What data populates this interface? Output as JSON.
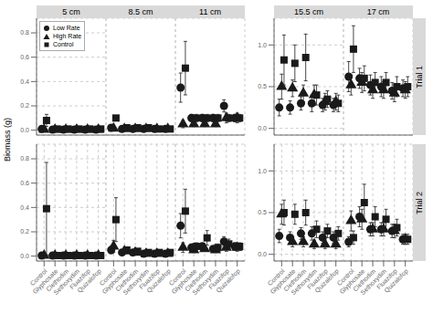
{
  "chart_data": [
    {
      "type": "scatter",
      "title": "5 cm",
      "ylabel": "Biomass (g)",
      "legend": "upper left",
      "tick_labels": "y",
      "grid": true,
      "categories": [
        "Control",
        "Glyphosate",
        "Clethodim",
        "Sethoxydim",
        "Fluazifop",
        "Quizalofop"
      ],
      "ylim": [
        -0.04,
        0.92
      ],
      "yticks": [
        {
          "value": 0,
          "label": "0.0"
        },
        0.2,
        0.4,
        0.6,
        0.8
      ],
      "series": [
        {
          "name": "Low Rate",
          "marker": "circle",
          "color": "#1a1a1a",
          "values": [
            0.01,
            0.005,
            0.005,
            0.005,
            0.005,
            0.005
          ],
          "errors": [
            0.005,
            0.002,
            0.002,
            0.002,
            0.002,
            0.002
          ]
        },
        {
          "name": "High Rate",
          "marker": "triangle",
          "color": "#1a1a1a",
          "values": [
            0.005,
            0.005,
            0.005,
            0.005,
            0.005,
            0.005
          ],
          "errors": [
            0.003,
            0.002,
            0.002,
            0.002,
            0.002,
            0.002
          ]
        },
        {
          "name": "Control",
          "marker": "square",
          "color": "#1a1a1a",
          "values": [
            0.08,
            0.01,
            0.01,
            0.01,
            0.01,
            0.01
          ],
          "errors": [
            0.05,
            0.003,
            0.003,
            0.003,
            0.003,
            0.003
          ]
        }
      ]
    },
    {
      "type": "scatter",
      "title": "8.5 cm",
      "tick_labels": false,
      "grid": true,
      "categories": [
        "Control",
        "Glyphosate",
        "Clethodim",
        "Sethoxydim",
        "Fluazifop",
        "Quizalofop"
      ],
      "ylim": [
        -0.04,
        0.92
      ],
      "yticks": [
        {
          "value": 0,
          "label": "0.0"
        },
        0.2,
        0.4,
        0.6,
        0.8
      ],
      "series": [
        {
          "name": "Low Rate",
          "marker": "circle",
          "color": "#1a1a1a",
          "values": [
            0.02,
            0.01,
            0.01,
            0.01,
            0.01,
            0.01
          ],
          "errors": [
            0.01,
            0.005,
            0.005,
            0.005,
            0.005,
            0.005
          ]
        },
        {
          "name": "High Rate",
          "marker": "triangle",
          "color": "#1a1a1a",
          "values": [
            0.015,
            0.01,
            0.01,
            0.01,
            0.01,
            0.01
          ],
          "errors": [
            0.008,
            0.005,
            0.005,
            0.005,
            0.005,
            0.005
          ]
        },
        {
          "name": "Control",
          "marker": "square",
          "color": "#1a1a1a",
          "values": [
            0.1,
            0.02,
            0.02,
            0.02,
            0.01,
            0.01
          ],
          "errors": [
            0.02,
            0.005,
            0.005,
            0.005,
            0.003,
            0.003
          ]
        }
      ]
    },
    {
      "type": "scatter",
      "title": "11 cm",
      "tick_labels": false,
      "grid": true,
      "categories": [
        "Control",
        "Glyphosate",
        "Clethodim",
        "Sethoxydim",
        "Fluazifop",
        "Quizalofop"
      ],
      "ylim": [
        -0.04,
        0.92
      ],
      "yticks": [
        {
          "value": 0,
          "label": "0.0"
        },
        0.2,
        0.4,
        0.6,
        0.8
      ],
      "series": [
        {
          "name": "Low Rate",
          "marker": "circle",
          "color": "#1a1a1a",
          "values": [
            0.35,
            0.1,
            0.1,
            0.1,
            0.2,
            0.1
          ],
          "errors": [
            0.12,
            0.03,
            0.03,
            0.03,
            0.05,
            0.03
          ]
        },
        {
          "name": "High Rate",
          "marker": "triangle",
          "color": "#1a1a1a",
          "values": [
            0.05,
            0.05,
            0.05,
            0.05,
            0.1,
            0.1
          ],
          "errors": [
            0.03,
            0.02,
            0.02,
            0.02,
            0.04,
            0.04
          ]
        },
        {
          "name": "Control",
          "marker": "square",
          "color": "#1a1a1a",
          "values": [
            0.51,
            0.1,
            0.1,
            0.1,
            0.1,
            0.1
          ],
          "errors": [
            0.22,
            0.03,
            0.03,
            0.03,
            0.03,
            0.03
          ]
        }
      ]
    },
    {
      "type": "scatter",
      "title": "15.5 cm",
      "tick_labels": "y",
      "grid": true,
      "categories": [
        "Control",
        "Glyphosate",
        "Clethodim",
        "Sethoxydim",
        "Fluazifop",
        "Quizalofop"
      ],
      "ylim": [
        -0.08,
        1.32
      ],
      "yticks": [
        {
          "value": 0,
          "label": "0.0"
        },
        0.5,
        {
          "value": 1,
          "label": "1.0"
        }
      ],
      "series": [
        {
          "name": "Low Rate",
          "marker": "circle",
          "color": "#1a1a1a",
          "values": [
            0.25,
            0.25,
            0.3,
            0.3,
            0.28,
            0.28
          ],
          "errors": [
            0.1,
            0.08,
            0.08,
            0.1,
            0.08,
            0.08
          ]
        },
        {
          "name": "High Rate",
          "marker": "triangle",
          "color": "#1a1a1a",
          "values": [
            0.5,
            0.48,
            0.42,
            0.4,
            0.32,
            0.32
          ],
          "errors": [
            0.15,
            0.1,
            0.1,
            0.12,
            0.1,
            0.1
          ]
        },
        {
          "name": "Control",
          "marker": "square",
          "color": "#1a1a1a",
          "values": [
            0.82,
            0.78,
            0.85,
            0.4,
            0.35,
            0.3
          ],
          "errors": [
            0.3,
            0.22,
            0.28,
            0.12,
            0.1,
            0.1
          ]
        }
      ]
    },
    {
      "type": "scatter",
      "title": "17 cm",
      "annotations": [
        "Trial 1"
      ],
      "tick_labels": false,
      "grid": true,
      "categories": [
        "Control",
        "Glyphosate",
        "Clethodim",
        "Sethoxydim",
        "Fluazifop",
        "Quizalofop"
      ],
      "ylim": [
        -0.08,
        1.32
      ],
      "yticks": [
        {
          "value": 0,
          "label": "0.0"
        },
        0.5,
        {
          "value": 1,
          "label": "1.0"
        }
      ],
      "series": [
        {
          "name": "Low Rate",
          "marker": "circle",
          "color": "#1a1a1a",
          "values": [
            0.62,
            0.6,
            0.52,
            0.5,
            0.45,
            0.48
          ],
          "errors": [
            0.18,
            0.12,
            0.12,
            0.12,
            0.1,
            0.1
          ]
        },
        {
          "name": "High Rate",
          "marker": "triangle",
          "color": "#1a1a1a",
          "values": [
            0.52,
            0.55,
            0.46,
            0.46,
            0.42,
            0.46
          ],
          "errors": [
            0.12,
            0.12,
            0.1,
            0.1,
            0.1,
            0.1
          ]
        },
        {
          "name": "Control",
          "marker": "square",
          "color": "#1a1a1a",
          "values": [
            0.95,
            0.6,
            0.55,
            0.55,
            0.5,
            0.5
          ],
          "errors": [
            0.28,
            0.15,
            0.12,
            0.12,
            0.12,
            0.12
          ]
        }
      ]
    },
    {
      "type": "scatter",
      "grid": true,
      "categories": [
        "Control",
        "Glyphosate",
        "Clethodim",
        "Sethoxydim",
        "Fluazifop",
        "Quizalofop"
      ],
      "ylim": [
        -0.04,
        0.92
      ],
      "yticks": [
        {
          "value": 0,
          "label": "0.0"
        },
        0.2,
        0.4,
        0.6,
        0.8
      ],
      "series": [
        {
          "name": "Low Rate",
          "marker": "circle",
          "color": "#1a1a1a",
          "values": [
            0.005,
            0.005,
            0.005,
            0.005,
            0.005,
            0.005
          ],
          "errors": [
            0.003,
            0.002,
            0.002,
            0.002,
            0.002,
            0.002
          ]
        },
        {
          "name": "High Rate",
          "marker": "triangle",
          "color": "#1a1a1a",
          "values": [
            0.005,
            0.005,
            0.005,
            0.005,
            0.005,
            0.005
          ],
          "errors": [
            0.003,
            0.002,
            0.002,
            0.002,
            0.002,
            0.002
          ]
        },
        {
          "name": "Control",
          "marker": "square",
          "color": "#1a1a1a",
          "values": [
            0.39,
            0.005,
            0.005,
            0.005,
            0.005,
            0.005
          ],
          "errors": [
            0.38,
            0.002,
            0.002,
            0.002,
            0.002,
            0.002
          ]
        }
      ]
    },
    {
      "type": "scatter",
      "tick_labels": "x",
      "grid": true,
      "categories": [
        "Control",
        "Glyphosate",
        "Clethodim",
        "Sethoxydim",
        "Fluazifop",
        "Quizalofop"
      ],
      "ylim": [
        -0.04,
        0.92
      ],
      "yticks": [
        {
          "value": 0,
          "label": "0.0"
        },
        0.2,
        0.4,
        0.6,
        0.8
      ],
      "series": [
        {
          "name": "Low Rate",
          "marker": "circle",
          "color": "#1a1a1a",
          "values": [
            0.05,
            0.03,
            0.03,
            0.02,
            0.02,
            0.02
          ],
          "errors": [
            0.03,
            0.01,
            0.01,
            0.01,
            0.01,
            0.01
          ]
        },
        {
          "name": "High Rate",
          "marker": "triangle",
          "color": "#1a1a1a",
          "values": [
            0.08,
            0.04,
            0.03,
            0.02,
            0.02,
            0.02
          ],
          "errors": [
            0.05,
            0.02,
            0.01,
            0.01,
            0.01,
            0.01
          ]
        },
        {
          "name": "Control",
          "marker": "square",
          "color": "#1a1a1a",
          "values": [
            0.3,
            0.05,
            0.04,
            0.03,
            0.03,
            0.03
          ],
          "errors": [
            0.18,
            0.02,
            0.02,
            0.01,
            0.01,
            0.01
          ]
        }
      ]
    },
    {
      "type": "scatter",
      "tick_labels": "x",
      "grid": true,
      "categories": [
        "Control",
        "Glyphosate",
        "Clethodim",
        "Sethoxydim",
        "Fluazifop",
        "Quizalofop"
      ],
      "ylim": [
        -0.04,
        0.92
      ],
      "yticks": [
        {
          "value": 0,
          "label": "0.0"
        },
        0.2,
        0.4,
        0.6,
        0.8
      ],
      "series": [
        {
          "name": "Low Rate",
          "marker": "circle",
          "color": "#1a1a1a",
          "values": [
            0.25,
            0.07,
            0.08,
            0.06,
            0.12,
            0.08
          ],
          "errors": [
            0.1,
            0.03,
            0.03,
            0.02,
            0.04,
            0.03
          ]
        },
        {
          "name": "High Rate",
          "marker": "triangle",
          "color": "#1a1a1a",
          "values": [
            0.07,
            0.05,
            0.06,
            0.05,
            0.07,
            0.07
          ],
          "errors": [
            0.04,
            0.02,
            0.02,
            0.02,
            0.03,
            0.03
          ]
        },
        {
          "name": "Control",
          "marker": "square",
          "color": "#1a1a1a",
          "values": [
            0.37,
            0.08,
            0.15,
            0.07,
            0.1,
            0.08
          ],
          "errors": [
            0.18,
            0.03,
            0.06,
            0.03,
            0.04,
            0.03
          ]
        }
      ]
    },
    {
      "type": "scatter",
      "grid": true,
      "categories": [
        "Control",
        "Glyphosate",
        "Clethodim",
        "Sethoxydim",
        "Fluazifop",
        "Quizalofop"
      ],
      "ylim": [
        -0.08,
        1.32
      ],
      "yticks": [
        {
          "value": 0,
          "label": "0.0"
        },
        0.5,
        {
          "value": 1,
          "label": "1.0"
        }
      ],
      "series": [
        {
          "name": "Low Rate",
          "marker": "circle",
          "color": "#1a1a1a",
          "values": [
            0.22,
            0.2,
            0.25,
            0.25,
            0.2,
            0.2
          ],
          "errors": [
            0.08,
            0.07,
            0.07,
            0.08,
            0.07,
            0.07
          ]
        },
        {
          "name": "High Rate",
          "marker": "triangle",
          "color": "#1a1a1a",
          "values": [
            0.48,
            0.15,
            0.15,
            0.12,
            0.12,
            0.12
          ],
          "errors": [
            0.12,
            0.06,
            0.06,
            0.05,
            0.05,
            0.05
          ]
        },
        {
          "name": "Control",
          "marker": "square",
          "color": "#1a1a1a",
          "values": [
            0.5,
            0.48,
            0.5,
            0.3,
            0.28,
            0.25
          ],
          "errors": [
            0.15,
            0.12,
            0.15,
            0.1,
            0.08,
            0.08
          ]
        }
      ]
    },
    {
      "type": "scatter",
      "annotations": [
        "Trial 2"
      ],
      "tick_labels": "x",
      "grid": true,
      "categories": [
        "Control",
        "Glyphosate",
        "Clethodim",
        "Sethoxydim",
        "Fluazifop",
        "Quizalofop"
      ],
      "ylim": [
        -0.08,
        1.32
      ],
      "yticks": [
        {
          "value": 0,
          "label": "0.0"
        },
        0.5,
        {
          "value": 1,
          "label": "1.0"
        }
      ],
      "series": [
        {
          "name": "Low Rate",
          "marker": "circle",
          "color": "#1a1a1a",
          "values": [
            0.15,
            0.45,
            0.3,
            0.3,
            0.28,
            0.18
          ],
          "errors": [
            0.06,
            0.12,
            0.08,
            0.08,
            0.08,
            0.06
          ]
        },
        {
          "name": "High Rate",
          "marker": "triangle",
          "color": "#1a1a1a",
          "values": [
            0.4,
            0.42,
            0.3,
            0.3,
            0.28,
            0.18
          ],
          "errors": [
            0.12,
            0.12,
            0.08,
            0.08,
            0.08,
            0.06
          ]
        },
        {
          "name": "Control",
          "marker": "square",
          "color": "#1a1a1a",
          "values": [
            0.2,
            0.62,
            0.45,
            0.42,
            0.32,
            0.18
          ],
          "errors": [
            0.08,
            0.22,
            0.12,
            0.12,
            0.1,
            0.06
          ]
        }
      ]
    }
  ]
}
